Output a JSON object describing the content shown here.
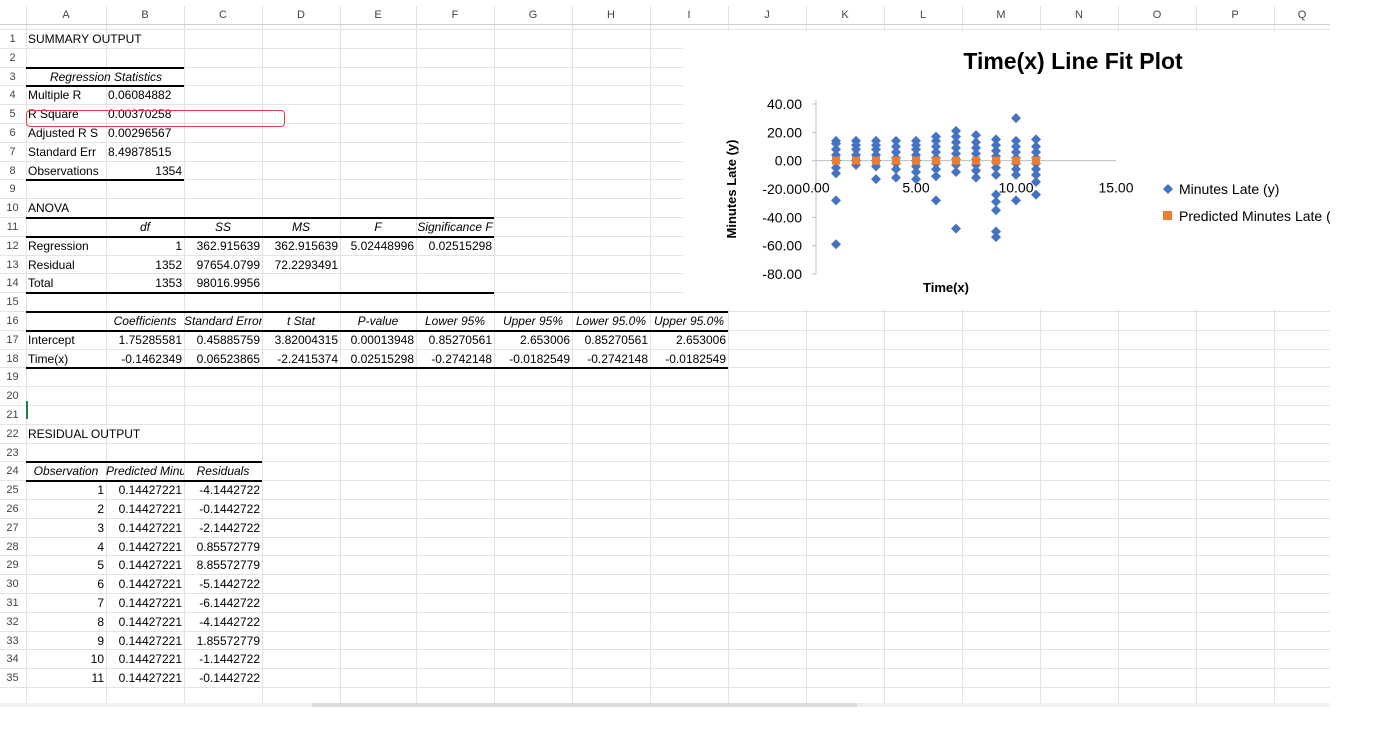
{
  "columns": [
    "A",
    "B",
    "C",
    "D",
    "E",
    "F",
    "G",
    "H",
    "I",
    "J",
    "K",
    "L",
    "M",
    "N",
    "O",
    "P",
    "Q"
  ],
  "rows": [
    1,
    2,
    3,
    4,
    5,
    6,
    7,
    8,
    9,
    10,
    11,
    12,
    13,
    14,
    15,
    16,
    17,
    18,
    19,
    20,
    21,
    22,
    23,
    24,
    25,
    26,
    27,
    28,
    29,
    30,
    31,
    32,
    33,
    34,
    35
  ],
  "summary": {
    "title": "SUMMARY OUTPUT",
    "reg_stats_header": "Regression Statistics",
    "stats": [
      {
        "label": "Multiple R",
        "value": "0.06084882"
      },
      {
        "label": "R Square",
        "value": "0.00370258"
      },
      {
        "label": "Adjusted R S",
        "value": "0.00296567"
      },
      {
        "label": "Standard Err",
        "value": "8.49878515"
      },
      {
        "label": "Observations",
        "value": "1354"
      }
    ]
  },
  "anova": {
    "title": "ANOVA",
    "headers": [
      "df",
      "SS",
      "MS",
      "F",
      "Significance F"
    ],
    "rows": [
      {
        "label": "Regression",
        "values": [
          "1",
          "362.915639",
          "362.915639",
          "5.02448996",
          "0.02515298"
        ]
      },
      {
        "label": "Residual",
        "values": [
          "1352",
          "97654.0799",
          "72.2293491",
          "",
          ""
        ]
      },
      {
        "label": "Total",
        "values": [
          "1353",
          "98016.9956",
          "",
          "",
          ""
        ]
      }
    ]
  },
  "coefficients": {
    "headers": [
      "Coefficients",
      "Standard Error",
      "t Stat",
      "P-value",
      "Lower 95%",
      "Upper 95%",
      "Lower 95.0%",
      "Upper 95.0%"
    ],
    "rows": [
      {
        "label": "Intercept",
        "values": [
          "1.75285581",
          "0.45885759",
          "3.82004315",
          "0.00013948",
          "0.85270561",
          "2.653006",
          "0.85270561",
          "2.653006"
        ]
      },
      {
        "label": "Time(x)",
        "values": [
          "-0.1462349",
          "0.06523865",
          "-2.2415374",
          "0.02515298",
          "-0.2742148",
          "-0.0182549",
          "-0.2742148",
          "-0.0182549"
        ]
      }
    ]
  },
  "residual_output": {
    "title": "RESIDUAL OUTPUT",
    "headers": [
      "Observation",
      "Predicted Minutes Late (y)",
      "Residuals"
    ],
    "rows": [
      [
        "1",
        "0.14427221",
        "-4.1442722"
      ],
      [
        "2",
        "0.14427221",
        "-0.1442722"
      ],
      [
        "3",
        "0.14427221",
        "-2.1442722"
      ],
      [
        "4",
        "0.14427221",
        "0.85572779"
      ],
      [
        "5",
        "0.14427221",
        "8.85572779"
      ],
      [
        "6",
        "0.14427221",
        "-5.1442722"
      ],
      [
        "7",
        "0.14427221",
        "-6.1442722"
      ],
      [
        "8",
        "0.14427221",
        "-4.1442722"
      ],
      [
        "9",
        "0.14427221",
        "1.85572779"
      ],
      [
        "10",
        "0.14427221",
        "-1.1442722"
      ],
      [
        "11",
        "0.14427221",
        "-0.1442722"
      ]
    ]
  },
  "colors": {
    "series1": "#4472c4",
    "series2": "#ed7d31",
    "selection": "#e0413c"
  },
  "chart_data": {
    "type": "scatter",
    "title": "Time(x) Line Fit  Plot",
    "xlabel": "Time(x)",
    "ylabel": "Minutes Late (y)",
    "xlim": [
      0,
      15
    ],
    "ylim": [
      -80,
      40
    ],
    "x_ticks": [
      "0.00",
      "5.00",
      "10.00",
      "15.00"
    ],
    "y_ticks": [
      "40.00",
      "20.00",
      "0.00",
      "-20.00",
      "-40.00",
      "-60.00",
      "-80.00"
    ],
    "legend_position": "right",
    "series": [
      {
        "name": "Minutes Late (y)",
        "marker": "diamond",
        "points": [
          [
            1,
            -59
          ],
          [
            1,
            -28
          ],
          [
            1,
            -9
          ],
          [
            1,
            -5
          ],
          [
            1,
            0
          ],
          [
            1,
            4
          ],
          [
            1,
            8
          ],
          [
            1,
            12
          ],
          [
            1,
            14
          ],
          [
            2,
            -3
          ],
          [
            2,
            0
          ],
          [
            2,
            4
          ],
          [
            2,
            8
          ],
          [
            2,
            11
          ],
          [
            2,
            14
          ],
          [
            3,
            -13
          ],
          [
            3,
            -4
          ],
          [
            3,
            0
          ],
          [
            3,
            4
          ],
          [
            3,
            8
          ],
          [
            3,
            11
          ],
          [
            3,
            14
          ],
          [
            4,
            -12
          ],
          [
            4,
            -6
          ],
          [
            4,
            -2
          ],
          [
            4,
            2
          ],
          [
            4,
            6
          ],
          [
            4,
            10
          ],
          [
            4,
            14
          ],
          [
            5,
            -13
          ],
          [
            5,
            -8
          ],
          [
            5,
            -4
          ],
          [
            5,
            0
          ],
          [
            5,
            4
          ],
          [
            5,
            8
          ],
          [
            5,
            11
          ],
          [
            5,
            14
          ],
          [
            6,
            -28
          ],
          [
            6,
            -11
          ],
          [
            6,
            -6
          ],
          [
            6,
            -2
          ],
          [
            6,
            2
          ],
          [
            6,
            6
          ],
          [
            6,
            10
          ],
          [
            6,
            14
          ],
          [
            6,
            17
          ],
          [
            7,
            -48
          ],
          [
            7,
            -8
          ],
          [
            7,
            -3
          ],
          [
            7,
            1
          ],
          [
            7,
            5
          ],
          [
            7,
            9
          ],
          [
            7,
            13
          ],
          [
            7,
            17
          ],
          [
            7,
            21
          ],
          [
            8,
            -12
          ],
          [
            8,
            -7
          ],
          [
            8,
            -3
          ],
          [
            8,
            1
          ],
          [
            8,
            5
          ],
          [
            8,
            9
          ],
          [
            8,
            13
          ],
          [
            8,
            18
          ],
          [
            9,
            -54
          ],
          [
            9,
            -50
          ],
          [
            9,
            -35
          ],
          [
            9,
            -29
          ],
          [
            9,
            -24
          ],
          [
            9,
            -10
          ],
          [
            9,
            -5
          ],
          [
            9,
            -1
          ],
          [
            9,
            3
          ],
          [
            9,
            7
          ],
          [
            9,
            11
          ],
          [
            9,
            15
          ],
          [
            10,
            -28
          ],
          [
            10,
            -10
          ],
          [
            10,
            -6
          ],
          [
            10,
            -2
          ],
          [
            10,
            2
          ],
          [
            10,
            6
          ],
          [
            10,
            10
          ],
          [
            10,
            14
          ],
          [
            10,
            30
          ],
          [
            11,
            -24
          ],
          [
            11,
            -15
          ],
          [
            11,
            -10
          ],
          [
            11,
            -6
          ],
          [
            11,
            -2
          ],
          [
            11,
            2
          ],
          [
            11,
            6
          ],
          [
            11,
            10
          ],
          [
            11,
            15
          ]
        ]
      },
      {
        "name": "Predicted Minutes Late (y)",
        "marker": "square",
        "points": [
          [
            1,
            0
          ],
          [
            2,
            0
          ],
          [
            3,
            0
          ],
          [
            4,
            0
          ],
          [
            5,
            0
          ],
          [
            6,
            0
          ],
          [
            7,
            0
          ],
          [
            8,
            0
          ],
          [
            9,
            0
          ],
          [
            10,
            0
          ],
          [
            11,
            0
          ]
        ]
      }
    ]
  }
}
